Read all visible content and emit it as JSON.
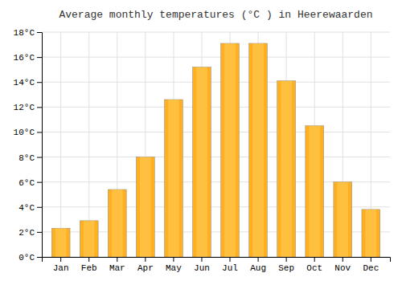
{
  "chart_data": {
    "type": "bar",
    "title": "Average monthly temperatures (°C ) in Heerewaarden",
    "categories": [
      "Jan",
      "Feb",
      "Mar",
      "Apr",
      "May",
      "Jun",
      "Jul",
      "Aug",
      "Sep",
      "Oct",
      "Nov",
      "Dec"
    ],
    "values": [
      2.3,
      2.9,
      5.4,
      8.0,
      12.6,
      15.2,
      17.1,
      17.1,
      14.1,
      10.5,
      6.0,
      3.8
    ],
    "color": "#FFB020",
    "ylim": [
      0,
      18
    ],
    "yticks": [
      {
        "value": 0,
        "label": "0°C"
      },
      {
        "value": 2,
        "label": "2°C"
      },
      {
        "value": 4,
        "label": "4°C"
      },
      {
        "value": 6,
        "label": "6°C"
      },
      {
        "value": 8,
        "label": "8°C"
      },
      {
        "value": 10,
        "label": "10°C"
      },
      {
        "value": 12,
        "label": "12°C"
      },
      {
        "value": 14,
        "label": "14°C"
      },
      {
        "value": 16,
        "label": "16°C"
      },
      {
        "value": 18,
        "label": "18°C"
      }
    ],
    "grid": true
  }
}
